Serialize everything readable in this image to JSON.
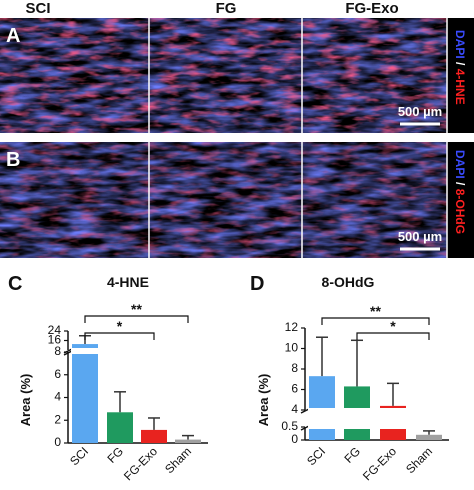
{
  "figure": {
    "columns": [
      "SCI",
      "FG",
      "FG-Exo"
    ],
    "rows": [
      {
        "label": "A",
        "stain": [
          "DAPI",
          "/",
          "4-HNE"
        ],
        "scale_bar": "500 µm"
      },
      {
        "label": "B",
        "stain": [
          "DAPI",
          "/",
          "8-OHdG"
        ],
        "scale_bar": "500 µm"
      }
    ]
  },
  "chart_data": [
    {
      "panel": "C",
      "type": "bar",
      "title": "4-HNE",
      "y_label": "Area (%)",
      "categories": [
        "SCI",
        "FG",
        "FG-Exo",
        "Sham"
      ],
      "values": [
        13,
        2.7,
        1.15,
        0.3
      ],
      "errors": [
        7,
        1.8,
        1.05,
        0.35
      ],
      "colors": [
        "#5aa7f0",
        "#1f9a5f",
        "#e8231f",
        "#a0a0a0"
      ],
      "ylim": [
        0,
        24
      ],
      "y_segments": [
        [
          0,
          8
        ],
        [
          8,
          24
        ]
      ],
      "yticks": [
        0,
        2,
        4,
        6,
        8,
        16,
        24
      ],
      "comparisons": [
        {
          "between": [
            "SCI",
            "Sham"
          ],
          "label": "**"
        },
        {
          "between": [
            "SCI",
            "FG-Exo"
          ],
          "label": "*"
        }
      ]
    },
    {
      "panel": "D",
      "type": "bar",
      "title": "8-OHdG",
      "y_label": "Area (%)",
      "categories": [
        "SCI",
        "FG",
        "FG-Exo",
        "Sham"
      ],
      "values": [
        7.3,
        6.3,
        4.4,
        0.2
      ],
      "errors": [
        3.8,
        4.5,
        2.2,
        0.15
      ],
      "colors": [
        "#5aa7f0",
        "#1f9a5f",
        "#e8231f",
        "#a0a0a0"
      ],
      "ylim": [
        0,
        12
      ],
      "y_segments": [
        [
          0,
          0.5
        ],
        [
          4,
          12
        ]
      ],
      "yticks": [
        0,
        0.5,
        4,
        6,
        8,
        10,
        12
      ],
      "comparisons": [
        {
          "between": [
            "SCI",
            "Sham"
          ],
          "label": "**"
        },
        {
          "between": [
            "FG",
            "Sham"
          ],
          "label": "*"
        }
      ]
    }
  ]
}
